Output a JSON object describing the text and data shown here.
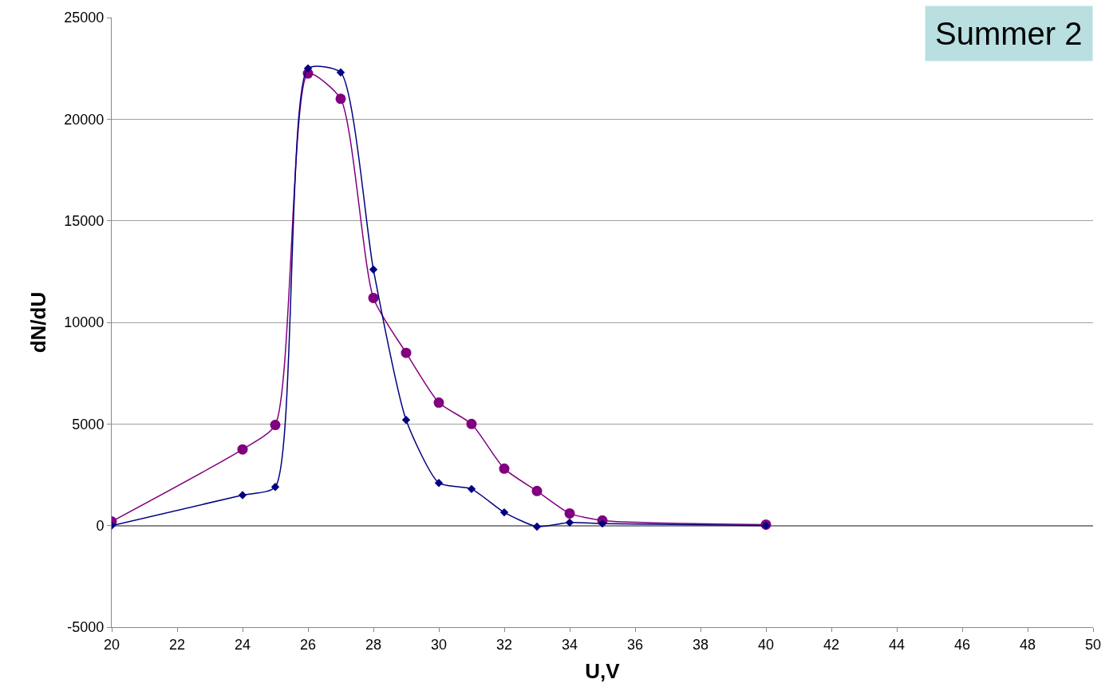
{
  "chart_data": {
    "type": "line",
    "xlabel": "U,V",
    "ylabel": "dN/dU",
    "annotations": [
      "Summer 2"
    ],
    "xlim": [
      20,
      50
    ],
    "xticks": [
      20,
      22,
      24,
      26,
      28,
      30,
      32,
      34,
      36,
      38,
      40,
      42,
      44,
      46,
      48,
      50
    ],
    "ylim": [
      -5000,
      25000
    ],
    "yticks": [
      -5000,
      0,
      5000,
      10000,
      15000,
      20000,
      25000
    ],
    "grid": "y",
    "x": [
      20,
      24,
      25,
      26,
      27,
      28,
      29,
      30,
      31,
      32,
      33,
      34,
      35,
      40
    ],
    "series": [
      {
        "color": "#800080",
        "marker": "circle",
        "values": [
          200,
          3750,
          4950,
          22250,
          21000,
          11200,
          8500,
          6050,
          5000,
          2800,
          1700,
          600,
          250,
          50
        ]
      },
      {
        "color": "#000080",
        "marker": "diamond",
        "values": [
          0,
          1500,
          1900,
          22500,
          22300,
          12600,
          5200,
          2100,
          1800,
          650,
          -50,
          150,
          100,
          0
        ]
      }
    ]
  }
}
